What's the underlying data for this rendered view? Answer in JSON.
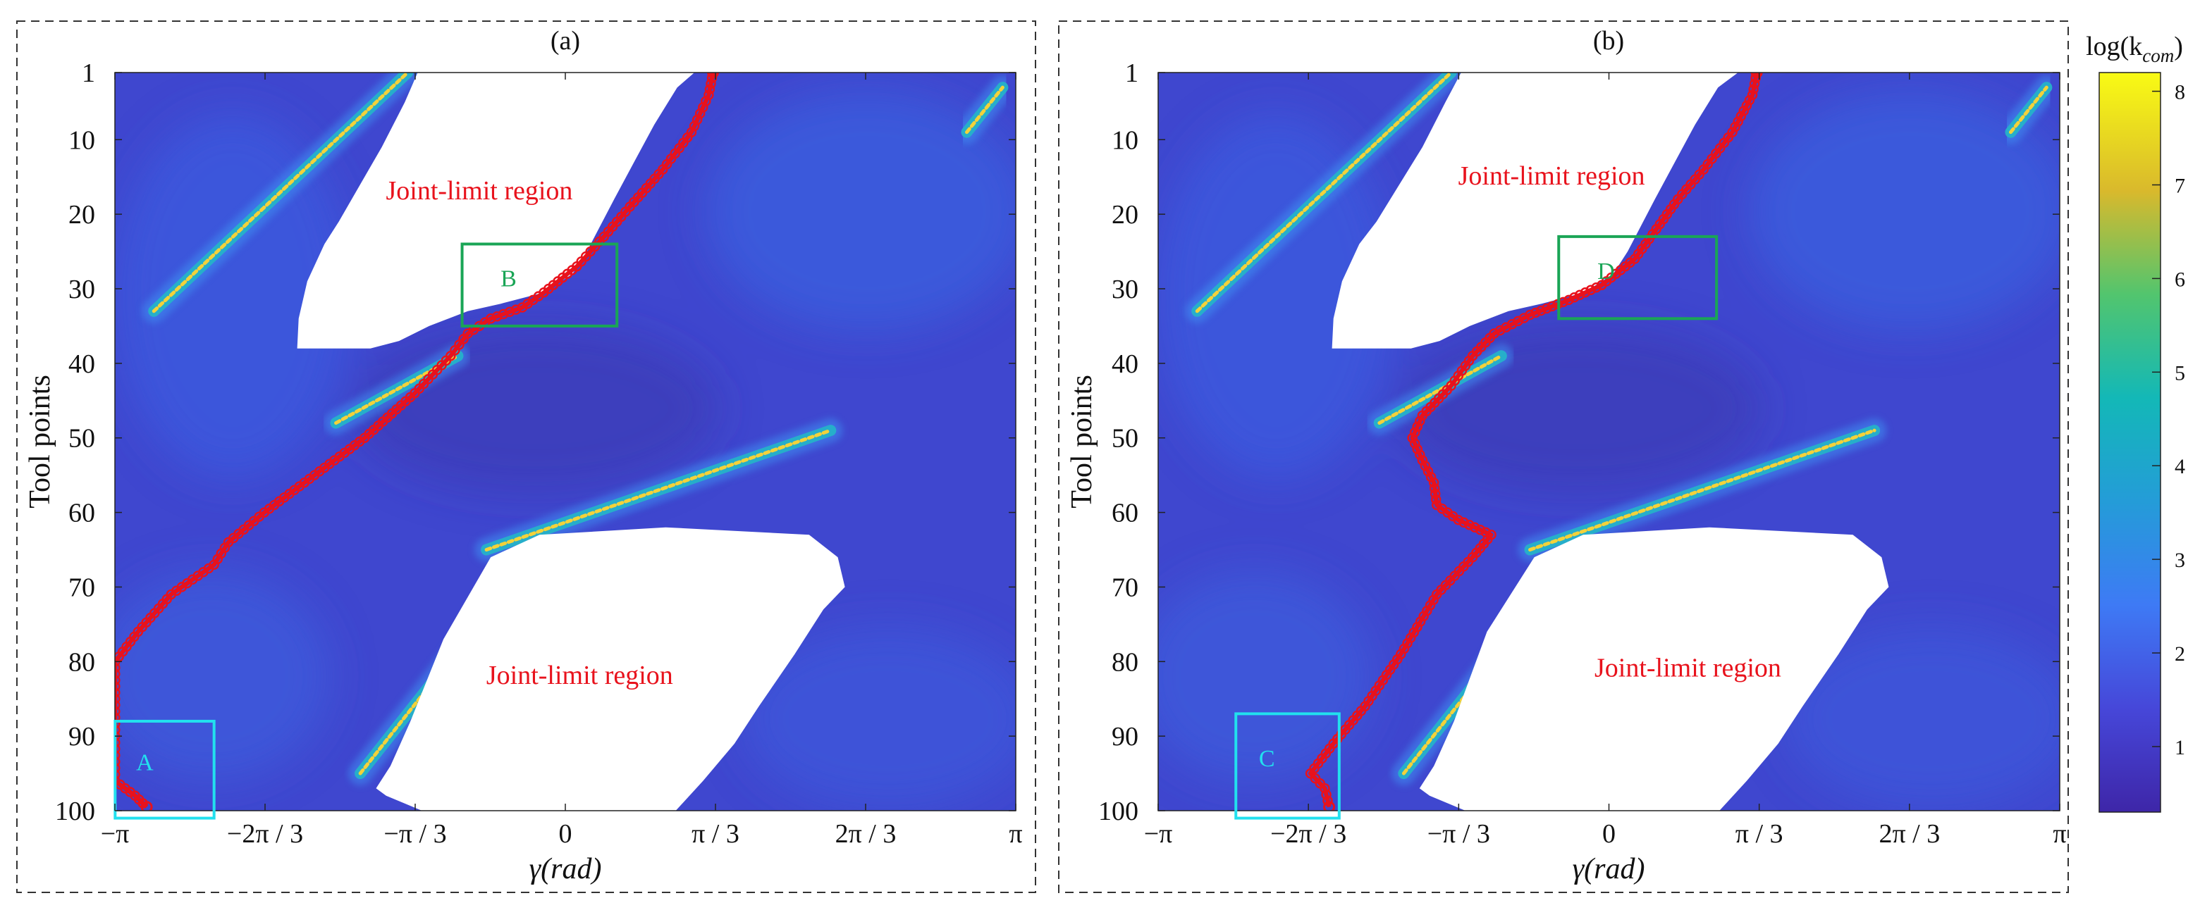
{
  "chart_data": [
    {
      "type": "heatmap",
      "panel_label": "(a)",
      "xlabel": "γ(rad)",
      "ylabel": "Tool points",
      "x_ticks": [
        "−π",
        "−2π / 3",
        "−π / 3",
        "0",
        "π / 3",
        "2π / 3",
        "π"
      ],
      "y_ticks": [
        "1",
        "10",
        "20",
        "30",
        "40",
        "50",
        "60",
        "70",
        "80",
        "90",
        "100"
      ],
      "xlim": [
        -3.1416,
        3.1416
      ],
      "ylim": [
        1,
        100
      ],
      "y_reversed": true,
      "grid": false,
      "annotations": [
        {
          "text": "Joint-limit region",
          "x": -0.6,
          "y": 18
        },
        {
          "text": "Joint-limit region",
          "x": 0.1,
          "y": 83
        }
      ],
      "boxes": [
        {
          "label": "A",
          "color": "#22e0ee",
          "x_range": [
            -3.14,
            -2.45
          ],
          "y_range": [
            88,
            101
          ]
        },
        {
          "label": "B",
          "color": "#1aa556",
          "x_range": [
            -0.72,
            0.36
          ],
          "y_range": [
            24,
            35
          ]
        }
      ],
      "joint_limit_regions": [
        {
          "points": [
            [
              -1.87,
              38
            ],
            [
              -1.86,
              34
            ],
            [
              -1.8,
              29
            ],
            [
              -1.68,
              24
            ],
            [
              -1.58,
              21
            ],
            [
              -1.43,
              16
            ],
            [
              -1.28,
              11
            ],
            [
              -1.12,
              5
            ],
            [
              -1.03,
              1
            ],
            [
              -0.78,
              1
            ],
            [
              -0.25,
              1
            ],
            [
              0.2,
              1
            ],
            [
              0.88,
              1
            ],
            [
              0.9,
              1
            ],
            [
              0.78,
              3
            ],
            [
              0.62,
              8
            ],
            [
              0.48,
              13
            ],
            [
              0.34,
              18
            ],
            [
              0.15,
              25
            ],
            [
              0.05,
              28
            ],
            [
              -0.15,
              30.5
            ],
            [
              -0.45,
              32
            ],
            [
              -0.68,
              33
            ],
            [
              -0.95,
              35
            ],
            [
              -1.16,
              37
            ],
            [
              -1.36,
              38
            ]
          ]
        },
        {
          "points": [
            [
              -0.85,
              77
            ],
            [
              -0.52,
              66
            ],
            [
              -0.18,
              63
            ],
            [
              0.7,
              62
            ],
            [
              1.7,
              63
            ],
            [
              1.9,
              66
            ],
            [
              1.95,
              70
            ],
            [
              1.8,
              73
            ],
            [
              1.6,
              79
            ],
            [
              1.35,
              86
            ],
            [
              1.18,
              91
            ],
            [
              0.96,
              96
            ],
            [
              0.77,
              100
            ],
            [
              -0.55,
              100
            ],
            [
              -1.0,
              100
            ],
            [
              -1.25,
              98
            ],
            [
              -1.32,
              97
            ],
            [
              -1.22,
              94
            ],
            [
              -1.08,
              88
            ]
          ]
        }
      ],
      "ridges": [
        {
          "from": [
            -2.87,
            33
          ],
          "to": [
            -1.1,
            1
          ]
        },
        {
          "from": [
            -1.6,
            48
          ],
          "to": [
            -0.75,
            39
          ]
        },
        {
          "from": [
            -0.55,
            65
          ],
          "to": [
            1.85,
            49
          ]
        },
        {
          "from": [
            -1.43,
            95
          ],
          "to": [
            -0.32,
            68
          ]
        },
        {
          "from": [
            2.8,
            9
          ],
          "to": [
            3.05,
            3
          ]
        }
      ],
      "path": {
        "color": "#e8121c",
        "points": [
          [
            1.03,
            1
          ],
          [
            1.0,
            4
          ],
          [
            0.88,
            9
          ],
          [
            0.68,
            14
          ],
          [
            0.45,
            19
          ],
          [
            0.27,
            23
          ],
          [
            0.08,
            27
          ],
          [
            -0.15,
            30.5
          ],
          [
            -0.3,
            32.5
          ],
          [
            -0.52,
            34
          ],
          [
            -0.68,
            36
          ],
          [
            -0.8,
            39
          ],
          [
            -1.05,
            44
          ],
          [
            -1.4,
            50
          ],
          [
            -1.75,
            55
          ],
          [
            -2.1,
            60
          ],
          [
            -2.35,
            64
          ],
          [
            -2.45,
            67
          ],
          [
            -2.75,
            71
          ],
          [
            -2.98,
            76
          ],
          [
            -3.14,
            80
          ],
          [
            -3.14,
            90
          ],
          [
            -3.14,
            96
          ],
          [
            -3.0,
            98
          ],
          [
            -2.92,
            99.5
          ]
        ]
      }
    },
    {
      "type": "heatmap",
      "panel_label": "(b)",
      "xlabel": "γ(rad)",
      "ylabel": "Tool points",
      "x_ticks": [
        "−π",
        "−2π / 3",
        "−π / 3",
        "0",
        "π / 3",
        "2π / 3",
        "π"
      ],
      "y_ticks": [
        "1",
        "10",
        "20",
        "30",
        "40",
        "50",
        "60",
        "70",
        "80",
        "90",
        "100"
      ],
      "xlim": [
        -3.1416,
        3.1416
      ],
      "ylim": [
        1,
        100
      ],
      "y_reversed": true,
      "grid": false,
      "annotations": [
        {
          "text": "Joint-limit region",
          "x": -0.4,
          "y": 16
        },
        {
          "text": "Joint-limit region",
          "x": 0.55,
          "y": 82
        }
      ],
      "boxes": [
        {
          "label": "C",
          "color": "#22e0ee",
          "x_range": [
            -2.6,
            -1.88
          ],
          "y_range": [
            87,
            101
          ]
        },
        {
          "label": "D",
          "color": "#1aa556",
          "x_range": [
            -0.35,
            0.75
          ],
          "y_range": [
            23,
            34
          ]
        }
      ],
      "joint_limit_regions": [
        {
          "points": [
            [
              -1.93,
              38
            ],
            [
              -1.92,
              34
            ],
            [
              -1.86,
              29
            ],
            [
              -1.74,
              24
            ],
            [
              -1.62,
              21
            ],
            [
              -1.46,
              16
            ],
            [
              -1.3,
              11
            ],
            [
              -1.14,
              5
            ],
            [
              -1.03,
              1
            ],
            [
              -0.78,
              1
            ],
            [
              -0.25,
              1
            ],
            [
              0.2,
              1
            ],
            [
              0.88,
              1
            ],
            [
              0.9,
              1
            ],
            [
              0.76,
              3
            ],
            [
              0.6,
              8
            ],
            [
              0.46,
              13
            ],
            [
              0.32,
              18
            ],
            [
              0.13,
              25
            ],
            [
              0.03,
              28
            ],
            [
              -0.17,
              30.5
            ],
            [
              -0.47,
              32
            ],
            [
              -0.7,
              33
            ],
            [
              -0.97,
              35
            ],
            [
              -1.18,
              37
            ],
            [
              -1.38,
              38
            ]
          ]
        },
        {
          "points": [
            [
              -0.85,
              76
            ],
            [
              -0.52,
              66
            ],
            [
              -0.18,
              63
            ],
            [
              0.7,
              62
            ],
            [
              1.7,
              63
            ],
            [
              1.9,
              66
            ],
            [
              1.95,
              70
            ],
            [
              1.8,
              73
            ],
            [
              1.6,
              79
            ],
            [
              1.35,
              86
            ],
            [
              1.18,
              91
            ],
            [
              0.96,
              96
            ],
            [
              0.77,
              100
            ],
            [
              -0.55,
              100
            ],
            [
              -1.0,
              100
            ],
            [
              -1.25,
              98
            ],
            [
              -1.32,
              97
            ],
            [
              -1.22,
              94
            ],
            [
              -1.08,
              88
            ]
          ]
        }
      ],
      "ridges": [
        {
          "from": [
            -2.87,
            33
          ],
          "to": [
            -1.1,
            1
          ]
        },
        {
          "from": [
            -1.6,
            48
          ],
          "to": [
            -0.75,
            39
          ]
        },
        {
          "from": [
            -0.55,
            65
          ],
          "to": [
            1.85,
            49
          ]
        },
        {
          "from": [
            -1.43,
            95
          ],
          "to": [
            -0.32,
            68
          ]
        },
        {
          "from": [
            2.8,
            9
          ],
          "to": [
            3.05,
            3
          ]
        }
      ],
      "path": {
        "color": "#e8121c",
        "points": [
          [
            1.03,
            1
          ],
          [
            1.0,
            4
          ],
          [
            0.86,
            9
          ],
          [
            0.66,
            14
          ],
          [
            0.48,
            18
          ],
          [
            0.33,
            22
          ],
          [
            0.18,
            26
          ],
          [
            -0.05,
            29.5
          ],
          [
            -0.28,
            31.5
          ],
          [
            -0.55,
            33.5
          ],
          [
            -0.8,
            36
          ],
          [
            -0.95,
            39
          ],
          [
            -1.1,
            43
          ],
          [
            -1.3,
            47
          ],
          [
            -1.37,
            50
          ],
          [
            -1.3,
            53
          ],
          [
            -1.22,
            56
          ],
          [
            -1.2,
            59
          ],
          [
            -1.05,
            61
          ],
          [
            -0.82,
            63
          ],
          [
            -0.95,
            66
          ],
          [
            -1.2,
            71
          ],
          [
            -1.45,
            79
          ],
          [
            -1.7,
            86
          ],
          [
            -1.92,
            91
          ],
          [
            -2.08,
            95
          ],
          [
            -1.98,
            97
          ],
          [
            -1.95,
            99.5
          ]
        ]
      }
    }
  ],
  "colorbar": {
    "title": "log(k",
    "title_sub": "com",
    "title_close": ")",
    "ticks": [
      "1",
      "2",
      "3",
      "4",
      "5",
      "6",
      "7",
      "8"
    ],
    "range": [
      0.3,
      8.2
    ]
  }
}
